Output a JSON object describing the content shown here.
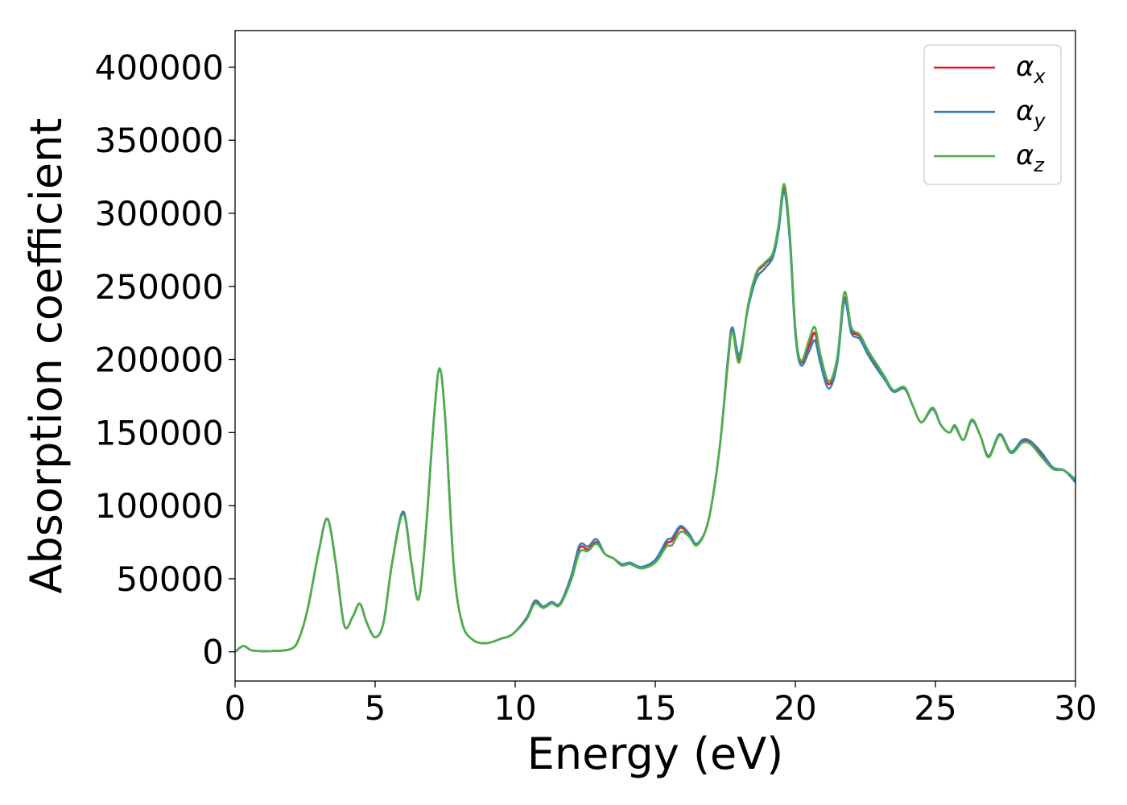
{
  "chart_data": {
    "type": "line",
    "title": "",
    "xlabel": "Energy (eV)",
    "ylabel": "Absorption coefficient",
    "xlim": [
      0,
      30
    ],
    "ylim": [
      -20000,
      425000
    ],
    "xticks": [
      "0",
      "5",
      "10",
      "15",
      "20",
      "25",
      "30"
    ],
    "yticks": [
      "0",
      "50000",
      "100000",
      "150000",
      "200000",
      "250000",
      "300000",
      "350000",
      "400000"
    ],
    "grid": false,
    "legend_position": "top-right",
    "series": [
      {
        "name": "α_x",
        "label_main": "α",
        "label_sub": "x",
        "color": "#e41a1c",
        "points": [
          [
            0,
            0
          ],
          [
            0.3,
            4000
          ],
          [
            0.6,
            1000
          ],
          [
            1.2,
            500
          ],
          [
            2.0,
            2000
          ],
          [
            2.3,
            10000
          ],
          [
            2.6,
            30000
          ],
          [
            3.0,
            70000
          ],
          [
            3.3,
            91000
          ],
          [
            3.6,
            60000
          ],
          [
            3.9,
            18000
          ],
          [
            4.2,
            24000
          ],
          [
            4.45,
            33000
          ],
          [
            4.7,
            20000
          ],
          [
            5.0,
            10000
          ],
          [
            5.3,
            20000
          ],
          [
            5.6,
            60000
          ],
          [
            6.0,
            95000
          ],
          [
            6.3,
            60000
          ],
          [
            6.55,
            36000
          ],
          [
            6.8,
            80000
          ],
          [
            7.1,
            160000
          ],
          [
            7.3,
            193000
          ],
          [
            7.5,
            160000
          ],
          [
            7.8,
            60000
          ],
          [
            8.1,
            20000
          ],
          [
            8.5,
            8000
          ],
          [
            9.0,
            6000
          ],
          [
            9.5,
            9000
          ],
          [
            9.9,
            12000
          ],
          [
            10.4,
            23000
          ],
          [
            10.7,
            34000
          ],
          [
            11.0,
            31000
          ],
          [
            11.3,
            34000
          ],
          [
            11.6,
            33000
          ],
          [
            12.0,
            50000
          ],
          [
            12.3,
            71000
          ],
          [
            12.6,
            70000
          ],
          [
            12.9,
            75000
          ],
          [
            13.2,
            67000
          ],
          [
            13.5,
            64000
          ],
          [
            13.8,
            60000
          ],
          [
            14.1,
            60000
          ],
          [
            14.5,
            58000
          ],
          [
            15.0,
            62000
          ],
          [
            15.4,
            74000
          ],
          [
            15.6,
            76000
          ],
          [
            15.9,
            85000
          ],
          [
            16.2,
            80000
          ],
          [
            16.5,
            74000
          ],
          [
            16.9,
            90000
          ],
          [
            17.3,
            140000
          ],
          [
            17.6,
            200000
          ],
          [
            17.75,
            221000
          ],
          [
            18.0,
            200000
          ],
          [
            18.3,
            235000
          ],
          [
            18.6,
            258000
          ],
          [
            18.9,
            265000
          ],
          [
            19.2,
            272000
          ],
          [
            19.4,
            290000
          ],
          [
            19.6,
            318000
          ],
          [
            19.8,
            285000
          ],
          [
            20.0,
            220000
          ],
          [
            20.2,
            198000
          ],
          [
            20.5,
            210000
          ],
          [
            20.7,
            218000
          ],
          [
            20.9,
            200000
          ],
          [
            21.2,
            183000
          ],
          [
            21.5,
            200000
          ],
          [
            21.75,
            242000
          ],
          [
            22.0,
            220000
          ],
          [
            22.3,
            216000
          ],
          [
            22.6,
            205000
          ],
          [
            22.9,
            195000
          ],
          [
            23.2,
            187000
          ],
          [
            23.5,
            178000
          ],
          [
            23.9,
            180000
          ],
          [
            24.2,
            168000
          ],
          [
            24.5,
            157000
          ],
          [
            24.9,
            166000
          ],
          [
            25.2,
            155000
          ],
          [
            25.5,
            150000
          ],
          [
            25.7,
            154000
          ],
          [
            26.0,
            145000
          ],
          [
            26.3,
            158000
          ],
          [
            26.6,
            148000
          ],
          [
            26.9,
            134000
          ],
          [
            27.3,
            148000
          ],
          [
            27.7,
            136000
          ],
          [
            28.1,
            144000
          ],
          [
            28.4,
            143000
          ],
          [
            28.8,
            134000
          ],
          [
            29.2,
            126000
          ],
          [
            29.6,
            124000
          ],
          [
            30.0,
            117000
          ]
        ]
      },
      {
        "name": "α_y",
        "label_main": "α",
        "label_sub": "y",
        "color": "#377eb8",
        "points": [
          [
            0,
            0
          ],
          [
            0.3,
            4000
          ],
          [
            0.6,
            1000
          ],
          [
            1.2,
            500
          ],
          [
            2.0,
            2000
          ],
          [
            2.3,
            10000
          ],
          [
            2.6,
            30000
          ],
          [
            3.0,
            70000
          ],
          [
            3.3,
            91000
          ],
          [
            3.6,
            60000
          ],
          [
            3.9,
            18000
          ],
          [
            4.2,
            24000
          ],
          [
            4.45,
            33000
          ],
          [
            4.7,
            20000
          ],
          [
            5.0,
            10000
          ],
          [
            5.3,
            20000
          ],
          [
            5.6,
            60000
          ],
          [
            6.0,
            96000
          ],
          [
            6.3,
            60000
          ],
          [
            6.55,
            36000
          ],
          [
            6.8,
            80000
          ],
          [
            7.1,
            160000
          ],
          [
            7.3,
            193000
          ],
          [
            7.5,
            160000
          ],
          [
            7.8,
            60000
          ],
          [
            8.1,
            20000
          ],
          [
            8.5,
            8000
          ],
          [
            9.0,
            6000
          ],
          [
            9.5,
            9000
          ],
          [
            9.9,
            12000
          ],
          [
            10.4,
            23000
          ],
          [
            10.7,
            35000
          ],
          [
            11.0,
            31000
          ],
          [
            11.3,
            34000
          ],
          [
            11.6,
            33000
          ],
          [
            12.0,
            52000
          ],
          [
            12.3,
            73000
          ],
          [
            12.6,
            72000
          ],
          [
            12.9,
            77000
          ],
          [
            13.2,
            67000
          ],
          [
            13.5,
            64000
          ],
          [
            13.8,
            60000
          ],
          [
            14.1,
            61000
          ],
          [
            14.5,
            58000
          ],
          [
            15.0,
            63000
          ],
          [
            15.4,
            76000
          ],
          [
            15.6,
            78000
          ],
          [
            15.9,
            86000
          ],
          [
            16.2,
            81000
          ],
          [
            16.5,
            74000
          ],
          [
            16.9,
            90000
          ],
          [
            17.3,
            140000
          ],
          [
            17.6,
            202000
          ],
          [
            17.75,
            222000
          ],
          [
            18.0,
            203000
          ],
          [
            18.3,
            234000
          ],
          [
            18.6,
            255000
          ],
          [
            18.9,
            262000
          ],
          [
            19.2,
            270000
          ],
          [
            19.4,
            288000
          ],
          [
            19.6,
            315000
          ],
          [
            19.8,
            282000
          ],
          [
            20.0,
            218000
          ],
          [
            20.2,
            196000
          ],
          [
            20.5,
            206000
          ],
          [
            20.7,
            213000
          ],
          [
            20.9,
            197000
          ],
          [
            21.2,
            180000
          ],
          [
            21.5,
            198000
          ],
          [
            21.75,
            240000
          ],
          [
            22.0,
            218000
          ],
          [
            22.3,
            214000
          ],
          [
            22.6,
            203000
          ],
          [
            22.9,
            194000
          ],
          [
            23.2,
            186000
          ],
          [
            23.5,
            178000
          ],
          [
            23.9,
            180000
          ],
          [
            24.2,
            168000
          ],
          [
            24.5,
            157000
          ],
          [
            24.9,
            166000
          ],
          [
            25.2,
            155000
          ],
          [
            25.5,
            150000
          ],
          [
            25.7,
            154000
          ],
          [
            26.0,
            145000
          ],
          [
            26.3,
            158000
          ],
          [
            26.6,
            148000
          ],
          [
            26.9,
            134000
          ],
          [
            27.3,
            149000
          ],
          [
            27.7,
            137000
          ],
          [
            28.1,
            145000
          ],
          [
            28.4,
            144000
          ],
          [
            28.8,
            136000
          ],
          [
            29.2,
            126000
          ],
          [
            29.6,
            124000
          ],
          [
            30.0,
            116000
          ]
        ]
      },
      {
        "name": "α_z",
        "label_main": "α",
        "label_sub": "z",
        "color": "#4daf4a",
        "points": [
          [
            0,
            0
          ],
          [
            0.3,
            4000
          ],
          [
            0.6,
            1000
          ],
          [
            1.2,
            500
          ],
          [
            2.0,
            2000
          ],
          [
            2.3,
            10000
          ],
          [
            2.6,
            30000
          ],
          [
            3.0,
            70000
          ],
          [
            3.3,
            91000
          ],
          [
            3.6,
            60000
          ],
          [
            3.9,
            18000
          ],
          [
            4.2,
            24000
          ],
          [
            4.45,
            33000
          ],
          [
            4.7,
            20000
          ],
          [
            5.0,
            10000
          ],
          [
            5.3,
            20000
          ],
          [
            5.6,
            60000
          ],
          [
            6.0,
            94000
          ],
          [
            6.3,
            60000
          ],
          [
            6.55,
            36000
          ],
          [
            6.8,
            80000
          ],
          [
            7.1,
            160000
          ],
          [
            7.3,
            194000
          ],
          [
            7.5,
            160000
          ],
          [
            7.8,
            60000
          ],
          [
            8.1,
            20000
          ],
          [
            8.5,
            8000
          ],
          [
            9.0,
            6000
          ],
          [
            9.5,
            9000
          ],
          [
            9.9,
            12000
          ],
          [
            10.4,
            22000
          ],
          [
            10.7,
            33000
          ],
          [
            11.0,
            30000
          ],
          [
            11.3,
            33000
          ],
          [
            11.6,
            32000
          ],
          [
            12.0,
            49000
          ],
          [
            12.3,
            68000
          ],
          [
            12.6,
            69000
          ],
          [
            12.9,
            74000
          ],
          [
            13.2,
            67000
          ],
          [
            13.5,
            64000
          ],
          [
            13.8,
            59000
          ],
          [
            14.1,
            60000
          ],
          [
            14.5,
            57000
          ],
          [
            15.0,
            61000
          ],
          [
            15.4,
            72000
          ],
          [
            15.6,
            73000
          ],
          [
            15.9,
            82000
          ],
          [
            16.2,
            79000
          ],
          [
            16.5,
            73000
          ],
          [
            16.9,
            90000
          ],
          [
            17.3,
            140000
          ],
          [
            17.6,
            198000
          ],
          [
            17.75,
            219000
          ],
          [
            18.0,
            198000
          ],
          [
            18.3,
            236000
          ],
          [
            18.6,
            259000
          ],
          [
            18.9,
            266000
          ],
          [
            19.2,
            273000
          ],
          [
            19.4,
            292000
          ],
          [
            19.6,
            320000
          ],
          [
            19.8,
            287000
          ],
          [
            20.0,
            222000
          ],
          [
            20.2,
            199000
          ],
          [
            20.5,
            214000
          ],
          [
            20.7,
            222000
          ],
          [
            20.9,
            203000
          ],
          [
            21.2,
            185000
          ],
          [
            21.5,
            202000
          ],
          [
            21.75,
            246000
          ],
          [
            22.0,
            222000
          ],
          [
            22.3,
            217000
          ],
          [
            22.6,
            206000
          ],
          [
            22.9,
            197000
          ],
          [
            23.2,
            188000
          ],
          [
            23.5,
            179000
          ],
          [
            23.9,
            181000
          ],
          [
            24.2,
            168000
          ],
          [
            24.5,
            157000
          ],
          [
            24.9,
            167000
          ],
          [
            25.2,
            155000
          ],
          [
            25.5,
            150000
          ],
          [
            25.7,
            155000
          ],
          [
            26.0,
            145000
          ],
          [
            26.3,
            159000
          ],
          [
            26.6,
            148000
          ],
          [
            26.9,
            133000
          ],
          [
            27.3,
            148000
          ],
          [
            27.7,
            136000
          ],
          [
            28.1,
            143000
          ],
          [
            28.4,
            142000
          ],
          [
            28.8,
            133000
          ],
          [
            29.2,
            125000
          ],
          [
            29.6,
            124000
          ],
          [
            30.0,
            118000
          ]
        ]
      }
    ]
  }
}
